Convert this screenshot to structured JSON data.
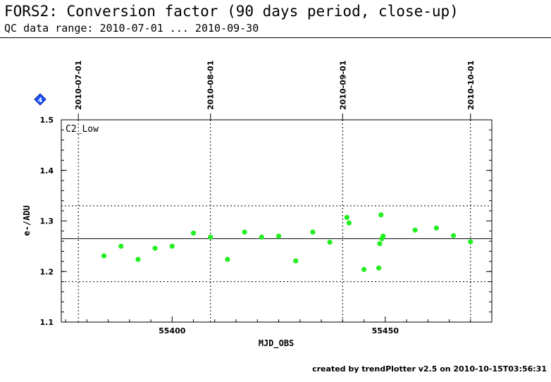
{
  "header": {
    "title": "FORS2: Conversion factor (90 days period, close-up)",
    "subtitle": "QC data range: 2010-07-01 ... 2010-09-30"
  },
  "footer": {
    "text": "created by trendPlotter v2.5 on 2010-10-15T03:56:31"
  },
  "chart_data": {
    "type": "scatter",
    "panel_label": "C2_Low",
    "marker_badge": "4",
    "xlabel": "MJD_OBS",
    "ylabel": "e-/ADU",
    "xlim": [
      55374,
      55475
    ],
    "ylim": [
      1.1,
      1.5
    ],
    "x_ticks": [
      55400,
      55450
    ],
    "y_ticks": [
      1.1,
      1.2,
      1.3,
      1.4,
      1.5
    ],
    "date_ticks": [
      {
        "label": "2010-07-01",
        "mjd": 55378
      },
      {
        "label": "2010-08-01",
        "mjd": 55409
      },
      {
        "label": "2010-09-01",
        "mjd": 55440
      },
      {
        "label": "2010-10-01",
        "mjd": 55470
      }
    ],
    "reference_lines": {
      "mean": 1.265,
      "upper": 1.33,
      "lower": 1.18
    },
    "grid": false,
    "point_color": "#22ee22",
    "series": [
      {
        "x": [
          55384,
          55388,
          55392,
          55396,
          55400,
          55405,
          55409,
          55413,
          55417,
          55421,
          55425,
          55429,
          55433,
          55437,
          55441,
          55441.5,
          55445,
          55448.5,
          55448.7,
          55449,
          55449.2,
          55449.5,
          55457,
          55462,
          55466,
          55470
        ],
        "y": [
          1.231,
          1.25,
          1.224,
          1.246,
          1.25,
          1.276,
          1.268,
          1.224,
          1.278,
          1.268,
          1.27,
          1.221,
          1.278,
          1.258,
          1.307,
          1.296,
          1.204,
          1.207,
          1.255,
          1.312,
          1.265,
          1.27,
          1.282,
          1.286,
          1.271,
          1.259
        ]
      }
    ]
  }
}
